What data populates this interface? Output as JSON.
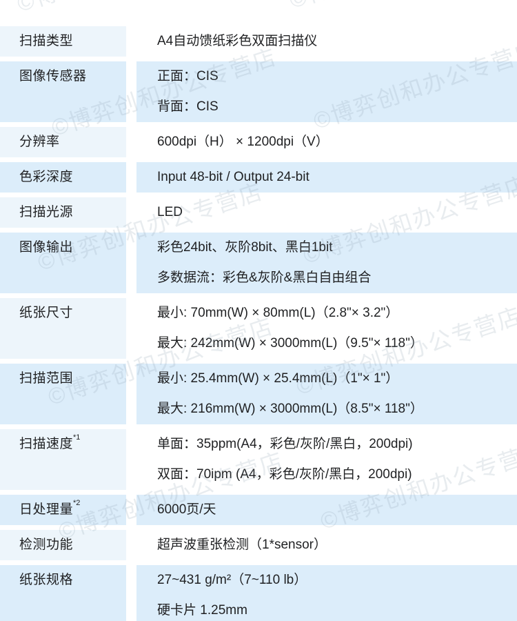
{
  "table": {
    "rows": [
      {
        "label": "扫描类型",
        "label_sup": "",
        "values": [
          "A4自动馈纸彩色双面扫描仪"
        ]
      },
      {
        "label": "图像传感器",
        "label_sup": "",
        "values": [
          "正面：CIS",
          "背面：CIS"
        ]
      },
      {
        "label": "分辨率",
        "label_sup": "",
        "values": [
          "600dpi（H） × 1200dpi（V）"
        ]
      },
      {
        "label": "色彩深度",
        "label_sup": "",
        "values": [
          "Input 48-bit / Output 24-bit"
        ]
      },
      {
        "label": "扫描光源",
        "label_sup": "",
        "values": [
          "LED"
        ]
      },
      {
        "label": "图像输出",
        "label_sup": "",
        "values": [
          "彩色24bit、灰阶8bit、黑白1bit",
          "多数据流：彩色&灰阶&黑白自由组合"
        ]
      },
      {
        "label": "纸张尺寸",
        "label_sup": "",
        "values": [
          "最小: 70mm(W) × 80mm(L)（2.8\"× 3.2\"）",
          "最大: 242mm(W) × 3000mm(L)（9.5\"× 118\"）"
        ]
      },
      {
        "label": "扫描范围",
        "label_sup": "",
        "values": [
          "最小: 25.4mm(W) × 25.4mm(L)（1\"× 1\"）",
          "最大: 216mm(W) × 3000mm(L)（8.5\"× 118\"）"
        ]
      },
      {
        "label": "扫描速度",
        "label_sup": "*1",
        "values": [
          "单面：35ppm(A4，彩色/灰阶/黑白，200dpi)",
          "双面：70ipm (A4，彩色/灰阶/黑白，200dpi)"
        ]
      },
      {
        "label": "日处理量",
        "label_sup": "*2",
        "values": [
          "6000页/天"
        ]
      },
      {
        "label": "检测功能",
        "label_sup": "",
        "values": [
          "超声波重张检测（1*sensor）"
        ]
      },
      {
        "label": "纸张规格",
        "label_sup": "",
        "values": [
          "27~431 g/m²（7~110 lb）",
          "硬卡片 1.25mm"
        ]
      }
    ]
  },
  "watermark": {
    "text": "©博弈创和办公专营店"
  },
  "colors": {
    "row_pale_label_bg": "#edf5fb",
    "row_pale_value_bg": "#ffffff",
    "row_blue_bg": "#dcedfa",
    "text": "#1f2022",
    "watermark": "rgba(138,160,176,0.20)"
  }
}
